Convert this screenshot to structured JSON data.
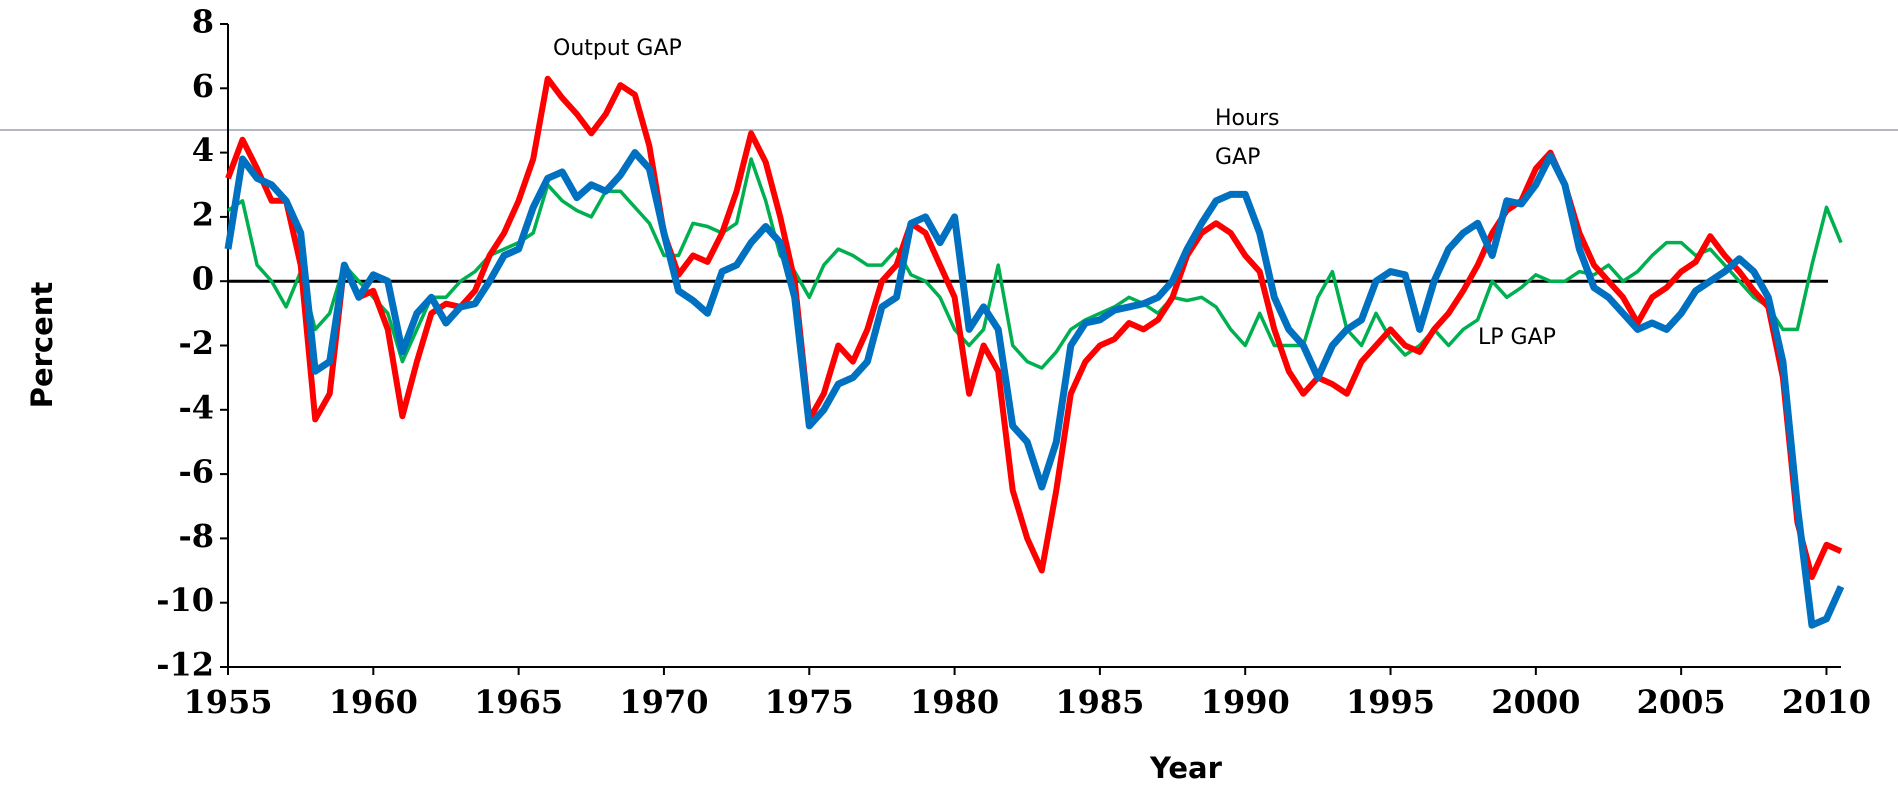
{
  "chart_data": {
    "type": "line",
    "x_label": "Year",
    "y_label": "Percent",
    "annotations": [
      "Output GAP",
      "Hours",
      "GAP",
      "LP GAP"
    ],
    "xlim": [
      1955,
      2010.5
    ],
    "xticks": [
      1955,
      1960,
      1965,
      1970,
      1975,
      1980,
      1985,
      1990,
      1995,
      2000,
      2005,
      2010
    ],
    "ylim": [
      -12,
      8
    ],
    "yticks": [
      -12,
      -10,
      -8,
      -6,
      -4,
      -2,
      0,
      2,
      4,
      6,
      8
    ],
    "zero_line": true,
    "x": [
      1955,
      1955.5,
      1956,
      1956.5,
      1957,
      1957.5,
      1958,
      1958.5,
      1959,
      1959.5,
      1960,
      1960.5,
      1961,
      1961.5,
      1962,
      1962.5,
      1963,
      1963.5,
      1964,
      1964.5,
      1965,
      1965.5,
      1966,
      1966.5,
      1967,
      1967.5,
      1968,
      1968.5,
      1969,
      1969.5,
      1970,
      1970.5,
      1971,
      1971.5,
      1972,
      1972.5,
      1973,
      1973.5,
      1974,
      1974.5,
      1975,
      1975.5,
      1976,
      1976.5,
      1977,
      1977.5,
      1978,
      1978.5,
      1979,
      1979.5,
      1980,
      1980.5,
      1981,
      1981.5,
      1982,
      1982.5,
      1983,
      1983.5,
      1984,
      1984.5,
      1985,
      1985.5,
      1986,
      1986.5,
      1987,
      1987.5,
      1988,
      1988.5,
      1989,
      1989.5,
      1990,
      1990.5,
      1991,
      1991.5,
      1992,
      1992.5,
      1993,
      1993.5,
      1994,
      1994.5,
      1995,
      1995.5,
      1996,
      1996.5,
      1997,
      1997.5,
      1998,
      1998.5,
      1999,
      1999.5,
      2000,
      2000.5,
      2001,
      2001.5,
      2002,
      2002.5,
      2003,
      2003.5,
      2004,
      2004.5,
      2005,
      2005.5,
      2006,
      2006.5,
      2007,
      2007.5,
      2008,
      2008.5,
      2009,
      2009.5,
      2010,
      2010.5
    ],
    "series": [
      {
        "color": "#00b050",
        "width": 3.5,
        "values": [
          2.2,
          2.5,
          0.5,
          0.0,
          -0.8,
          0.3,
          -1.5,
          -1.0,
          0.5,
          0.0,
          -0.5,
          -1.0,
          -2.5,
          -1.5,
          -0.5,
          -0.5,
          0.0,
          0.3,
          0.8,
          1.0,
          1.2,
          1.5,
          3.0,
          2.5,
          2.2,
          2.0,
          2.8,
          2.8,
          2.3,
          1.8,
          0.8,
          0.8,
          1.8,
          1.7,
          1.5,
          1.8,
          3.8,
          2.5,
          0.8,
          0.3,
          -0.5,
          0.5,
          1.0,
          0.8,
          0.5,
          0.5,
          1.0,
          0.2,
          0.0,
          -0.5,
          -1.5,
          -2.0,
          -1.5,
          0.5,
          -2.0,
          -2.5,
          -2.7,
          -2.2,
          -1.5,
          -1.2,
          -1.0,
          -0.8,
          -0.5,
          -0.7,
          -1.0,
          -0.5,
          -0.6,
          -0.5,
          -0.8,
          -1.5,
          -2.0,
          -1.0,
          -2.0,
          -2.0,
          -2.0,
          -0.5,
          0.3,
          -1.5,
          -2.0,
          -1.0,
          -1.8,
          -2.3,
          -2.0,
          -1.5,
          -2.0,
          -1.5,
          -1.2,
          0.0,
          -0.5,
          -0.2,
          0.2,
          0.0,
          0.0,
          0.3,
          0.2,
          0.5,
          0.0,
          0.3,
          0.8,
          1.2,
          1.2,
          0.8,
          1.0,
          0.5,
          0.0,
          -0.5,
          -0.8,
          -1.5,
          -1.5,
          0.5,
          2.3,
          1.2
        ]
      },
      {
        "color": "#ff0000",
        "width": 6,
        "values": [
          3.2,
          4.4,
          3.5,
          2.5,
          2.5,
          0.5,
          -4.3,
          -3.5,
          0.5,
          -0.5,
          -0.3,
          -1.5,
          -4.2,
          -2.5,
          -1.0,
          -0.7,
          -0.8,
          -0.3,
          0.8,
          1.5,
          2.5,
          3.8,
          6.3,
          5.7,
          5.2,
          4.6,
          5.2,
          6.1,
          5.8,
          4.2,
          1.5,
          0.2,
          0.8,
          0.6,
          1.5,
          2.8,
          4.6,
          3.7,
          2.0,
          0.0,
          -4.3,
          -3.5,
          -2.0,
          -2.5,
          -1.5,
          0.0,
          0.5,
          1.8,
          1.5,
          0.5,
          -0.5,
          -3.5,
          -2.0,
          -2.8,
          -6.5,
          -8.0,
          -9.0,
          -6.5,
          -3.5,
          -2.5,
          -2.0,
          -1.8,
          -1.3,
          -1.5,
          -1.2,
          -0.5,
          0.8,
          1.5,
          1.8,
          1.5,
          0.8,
          0.3,
          -1.5,
          -2.8,
          -3.5,
          -3.0,
          -3.2,
          -3.5,
          -2.5,
          -2.0,
          -1.5,
          -2.0,
          -2.2,
          -1.5,
          -1.0,
          -0.3,
          0.5,
          1.5,
          2.2,
          2.5,
          3.5,
          4.0,
          3.0,
          1.5,
          0.5,
          0.0,
          -0.5,
          -1.3,
          -0.5,
          -0.2,
          0.3,
          0.6,
          1.4,
          0.8,
          0.3,
          -0.3,
          -0.8,
          -3.0,
          -7.5,
          -9.2,
          -8.2,
          -8.4
        ]
      },
      {
        "color": "#0070c0",
        "width": 7,
        "values": [
          1.0,
          3.8,
          3.2,
          3.0,
          2.5,
          1.5,
          -2.8,
          -2.5,
          0.5,
          -0.5,
          0.2,
          0.0,
          -2.2,
          -1.0,
          -0.5,
          -1.3,
          -0.8,
          -0.7,
          0.0,
          0.8,
          1.0,
          2.3,
          3.2,
          3.4,
          2.6,
          3.0,
          2.8,
          3.3,
          4.0,
          3.5,
          1.5,
          -0.3,
          -0.6,
          -1.0,
          0.3,
          0.5,
          1.2,
          1.7,
          1.2,
          -0.5,
          -4.5,
          -4.0,
          -3.2,
          -3.0,
          -2.5,
          -0.8,
          -0.5,
          1.8,
          2.0,
          1.2,
          2.0,
          -1.5,
          -0.8,
          -1.5,
          -4.5,
          -5.0,
          -6.4,
          -5.0,
          -2.0,
          -1.3,
          -1.2,
          -0.9,
          -0.8,
          -0.7,
          -0.5,
          0.0,
          1.0,
          1.8,
          2.5,
          2.7,
          2.7,
          1.5,
          -0.5,
          -1.5,
          -2.0,
          -3.0,
          -2.0,
          -1.5,
          -1.2,
          0.0,
          0.3,
          0.2,
          -1.5,
          0.0,
          1.0,
          1.5,
          1.8,
          0.8,
          2.5,
          2.4,
          3.0,
          3.9,
          3.0,
          1.0,
          -0.2,
          -0.5,
          -1.0,
          -1.5,
          -1.3,
          -1.5,
          -1.0,
          -0.3,
          0.0,
          0.3,
          0.7,
          0.3,
          -0.5,
          -2.5,
          -7.0,
          -10.7,
          -10.5,
          -9.5
        ]
      }
    ]
  }
}
